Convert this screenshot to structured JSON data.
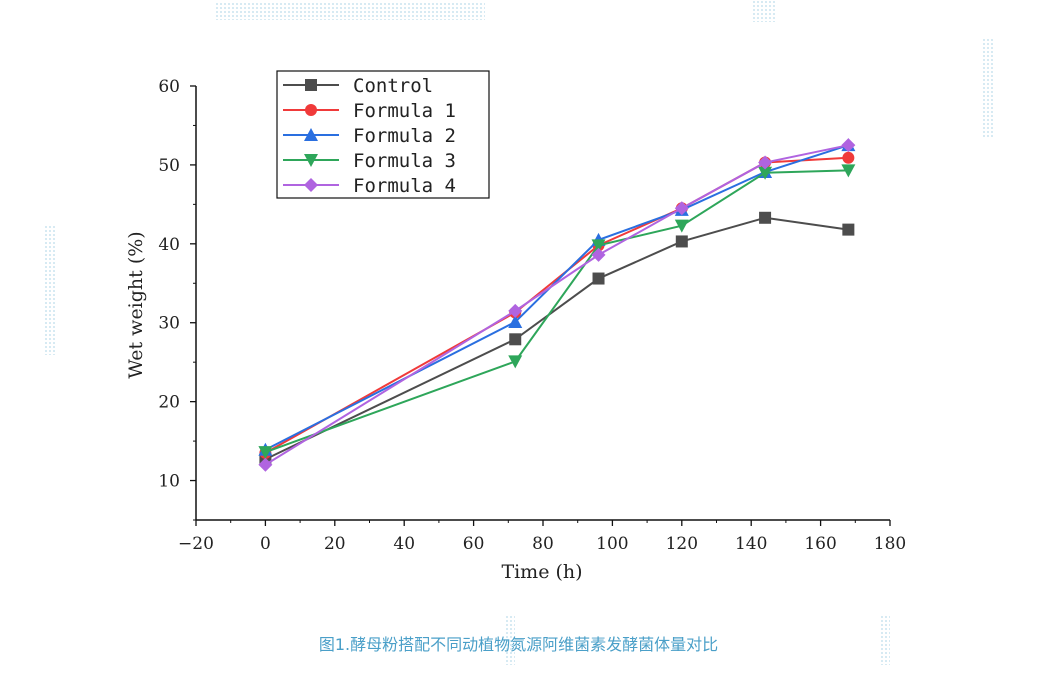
{
  "caption": "图1.酵母粉搭配不同动植物氮源阿维菌素发酵菌体量对比",
  "colors": {
    "control": "#4d4d4d",
    "formula1": "#f03a3a",
    "formula2": "#2a6fe0",
    "formula3": "#2ea65a",
    "formula4": "#b064e0"
  },
  "chart_data": {
    "type": "line",
    "title": "",
    "xlabel": "Time  (h)",
    "ylabel": "Wet weight (%)",
    "xlim": [
      -20,
      180
    ],
    "ylim": [
      5,
      60
    ],
    "xticks": [
      -20,
      0,
      20,
      40,
      60,
      80,
      100,
      120,
      140,
      160,
      180
    ],
    "yticks": [
      10,
      20,
      30,
      40,
      50,
      60
    ],
    "grid": false,
    "legend_position": "top-left",
    "x": [
      0,
      72,
      96,
      120,
      144,
      168
    ],
    "series": [
      {
        "name": "Control",
        "marker": "square",
        "color": "#4d4d4d",
        "values": [
          12.7,
          27.9,
          35.6,
          40.3,
          43.3,
          41.8
        ]
      },
      {
        "name": "Formula 1",
        "marker": "circle",
        "color": "#f03a3a",
        "values": [
          13.5,
          31.3,
          39.8,
          44.5,
          50.3,
          50.9
        ]
      },
      {
        "name": "Formula 2",
        "marker": "triangle-up",
        "color": "#2a6fe0",
        "values": [
          13.9,
          30.1,
          40.5,
          44.3,
          49.1,
          52.5
        ]
      },
      {
        "name": "Formula 3",
        "marker": "triangle-down",
        "color": "#2ea65a",
        "values": [
          13.6,
          25.1,
          39.8,
          42.3,
          49.0,
          49.3
        ]
      },
      {
        "name": "Formula 4",
        "marker": "diamond",
        "color": "#b064e0",
        "values": [
          12.0,
          31.5,
          38.6,
          44.5,
          50.3,
          52.5
        ]
      }
    ]
  }
}
